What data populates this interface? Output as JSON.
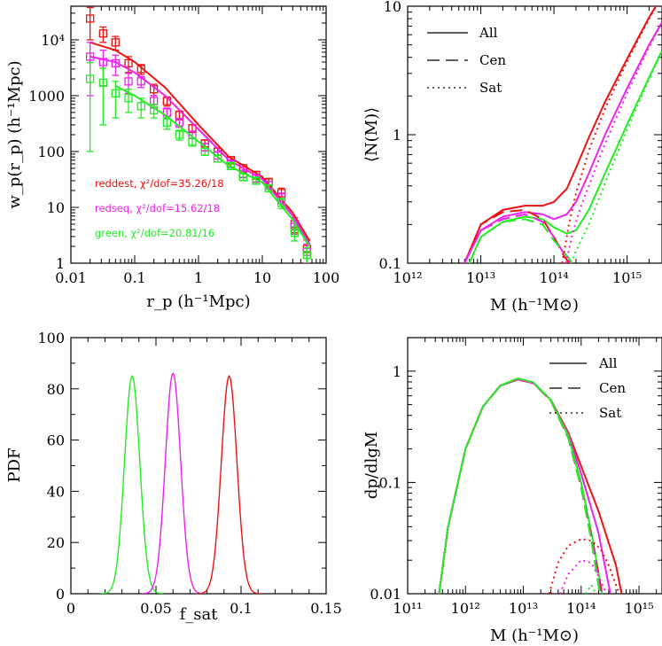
{
  "colors": {
    "reddest": "#ee1111",
    "redseq": "#ee22ee",
    "green": "#22ee22"
  },
  "chart_data": [
    {
      "panel": "top-left",
      "type": "scatter",
      "xlabel": "r_p (h⁻¹Mpc)",
      "ylabel": "w_p(r_p) (h⁻¹Mpc)",
      "xscale": "log",
      "yscale": "log",
      "xlim": [
        0.01,
        100
      ],
      "ylim": [
        1,
        40000
      ],
      "xticklabels": [
        "0.01",
        "0.1",
        "1",
        "10",
        "100"
      ],
      "yticklabels": [
        "1",
        "10",
        "100",
        "1000",
        "10⁴"
      ],
      "annotations": [
        {
          "text": "reddest, χ²/dof=35.26/18",
          "color": "#ee1111"
        },
        {
          "text": "redseq, χ²/dof=15.62/18",
          "color": "#ee22ee"
        },
        {
          "text": "green, χ²/dof=20.81/16",
          "color": "#22ee22"
        }
      ],
      "series": [
        {
          "color": "#ee1111",
          "x": [
            0.02,
            0.032,
            0.05,
            0.08,
            0.126,
            0.2,
            0.32,
            0.5,
            0.8,
            1.26,
            2.0,
            3.2,
            5.0,
            8.0,
            12.6,
            20,
            32,
            50
          ],
          "y": [
            24000,
            13000,
            9000,
            3800,
            3000,
            1300,
            800,
            450,
            260,
            140,
            100,
            70,
            50,
            38,
            28,
            18,
            5,
            1.8
          ],
          "err": [
            14000,
            4000,
            2500,
            1200,
            600,
            300,
            150,
            80,
            40,
            20,
            15,
            10,
            8,
            6,
            5,
            4,
            1.5,
            0.8
          ],
          "model_x": [
            0.02,
            0.05,
            0.1,
            0.3,
            1,
            3,
            10,
            30,
            55
          ],
          "model_y": [
            9000,
            6500,
            4000,
            1400,
            300,
            80,
            35,
            8,
            2.5
          ]
        },
        {
          "color": "#ee22ee",
          "x": [
            0.02,
            0.032,
            0.05,
            0.08,
            0.126,
            0.2,
            0.32,
            0.5,
            0.8,
            1.26,
            2.0,
            3.2,
            5.0,
            8.0,
            12.6,
            20,
            32,
            50
          ],
          "y": [
            5000,
            4000,
            3800,
            1800,
            1800,
            800,
            500,
            330,
            200,
            120,
            85,
            60,
            40,
            33,
            25,
            15,
            4.5,
            1.6
          ],
          "err": [
            4000,
            2500,
            1500,
            700,
            400,
            200,
            100,
            60,
            30,
            18,
            12,
            8,
            6,
            5,
            4,
            3,
            1.2,
            0.6
          ],
          "model_x": [
            0.02,
            0.05,
            0.1,
            0.3,
            1,
            3,
            10,
            30,
            55
          ],
          "model_y": [
            5000,
            4000,
            2600,
            1000,
            250,
            70,
            32,
            7,
            2.2
          ]
        },
        {
          "color": "#22ee22",
          "x": [
            0.02,
            0.032,
            0.05,
            0.08,
            0.126,
            0.2,
            0.32,
            0.5,
            0.8,
            1.26,
            2.0,
            3.2,
            5.0,
            8.0,
            12.6,
            20,
            32,
            50
          ],
          "y": [
            2000,
            1700,
            1100,
            900,
            650,
            550,
            330,
            200,
            150,
            100,
            75,
            55,
            35,
            30,
            22,
            12,
            3.5,
            1.4
          ],
          "err": [
            1900,
            1400,
            700,
            400,
            250,
            150,
            80,
            40,
            25,
            15,
            10,
            7,
            5,
            4,
            3,
            2.5,
            1.0,
            0.5
          ],
          "model_x": [
            0.05,
            0.1,
            0.3,
            1,
            3,
            10,
            30,
            55
          ],
          "model_y": [
            1500,
            1000,
            450,
            150,
            55,
            28,
            6,
            2.0
          ]
        }
      ]
    },
    {
      "panel": "top-right",
      "type": "line",
      "xlabel": "M (h⁻¹M⊙)",
      "ylabel": "⟨N(M)⟩",
      "xscale": "log",
      "yscale": "log",
      "xlim": [
        1000000000000.0,
        3000000000000000.0
      ],
      "ylim": [
        0.1,
        10
      ],
      "xticklabels": [
        "10¹²",
        "10¹³",
        "10¹⁴",
        "10¹⁵"
      ],
      "yticklabels": [
        "0.1",
        "1",
        "10"
      ],
      "legend": {
        "placement": "top-left",
        "entries": [
          "All",
          "Cen",
          "Sat"
        ]
      },
      "series": [
        {
          "name": "All",
          "color": "#ee1111",
          "style": "solid",
          "x": [
            6000000000000.0,
            10000000000000.0,
            20000000000000.0,
            40000000000000.0,
            70000000000000.0,
            100000000000000.0,
            150000000000000.0,
            200000000000000.0,
            300000000000000.0,
            500000000000000.0,
            1000000000000000.0,
            2000000000000000.0,
            3000000000000000.0
          ],
          "y": [
            0.1,
            0.2,
            0.26,
            0.28,
            0.28,
            0.3,
            0.38,
            0.55,
            0.95,
            1.8,
            3.9,
            8.2,
            12
          ]
        },
        {
          "name": "All",
          "color": "#ee22ee",
          "style": "solid",
          "x": [
            6000000000000.0,
            10000000000000.0,
            20000000000000.0,
            40000000000000.0,
            70000000000000.0,
            100000000000000.0,
            150000000000000.0,
            200000000000000.0,
            300000000000000.0,
            500000000000000.0,
            1000000000000000.0,
            2000000000000000.0,
            3000000000000000.0
          ],
          "y": [
            0.1,
            0.18,
            0.23,
            0.25,
            0.24,
            0.22,
            0.24,
            0.3,
            0.5,
            1.0,
            2.3,
            5.0,
            7.5
          ]
        },
        {
          "name": "All",
          "color": "#22ee22",
          "style": "solid",
          "x": [
            7000000000000.0,
            10000000000000.0,
            20000000000000.0,
            40000000000000.0,
            70000000000000.0,
            100000000000000.0,
            150000000000000.0,
            200000000000000.0,
            300000000000000.0,
            500000000000000.0,
            1000000000000000.0,
            2000000000000000.0,
            3000000000000000.0
          ],
          "y": [
            0.1,
            0.16,
            0.21,
            0.23,
            0.22,
            0.19,
            0.17,
            0.18,
            0.26,
            0.5,
            1.2,
            2.8,
            4.5
          ]
        },
        {
          "name": "Cen",
          "color": "#ee1111",
          "style": "dashed",
          "x": [
            6000000000000.0,
            10000000000000.0,
            20000000000000.0,
            40000000000000.0,
            70000000000000.0,
            100000000000000.0,
            130000000000000.0,
            160000000000000.0
          ],
          "y": [
            0.1,
            0.2,
            0.25,
            0.26,
            0.22,
            0.16,
            0.12,
            0.1
          ]
        },
        {
          "name": "Cen",
          "color": "#ee22ee",
          "style": "dashed",
          "x": [
            6000000000000.0,
            10000000000000.0,
            20000000000000.0,
            40000000000000.0,
            70000000000000.0,
            100000000000000.0,
            135000000000000.0,
            170000000000000.0
          ],
          "y": [
            0.1,
            0.18,
            0.22,
            0.24,
            0.21,
            0.16,
            0.12,
            0.1
          ]
        },
        {
          "name": "Cen",
          "color": "#22ee22",
          "style": "dashed",
          "x": [
            7000000000000.0,
            10000000000000.0,
            20000000000000.0,
            40000000000000.0,
            70000000000000.0,
            100000000000000.0,
            140000000000000.0,
            180000000000000.0
          ],
          "y": [
            0.1,
            0.16,
            0.21,
            0.22,
            0.2,
            0.15,
            0.12,
            0.1
          ]
        },
        {
          "name": "Sat",
          "color": "#ee1111",
          "style": "dotted",
          "x": [
            130000000000000.0,
            160000000000000.0,
            200000000000000.0,
            300000000000000.0,
            500000000000000.0,
            1000000000000000.0,
            2000000000000000.0,
            3000000000000000.0
          ],
          "y": [
            0.1,
            0.2,
            0.35,
            0.75,
            1.6,
            3.7,
            8.0,
            12
          ]
        },
        {
          "name": "Sat",
          "color": "#ee22ee",
          "style": "dotted",
          "x": [
            145000000000000.0,
            180000000000000.0,
            230000000000000.0,
            300000000000000.0,
            500000000000000.0,
            1000000000000000.0,
            2000000000000000.0,
            3000000000000000.0
          ],
          "y": [
            0.1,
            0.17,
            0.27,
            0.4,
            0.85,
            2.1,
            4.8,
            7.5
          ]
        },
        {
          "name": "Sat",
          "color": "#22ee22",
          "style": "dotted",
          "x": [
            170000000000000.0,
            220000000000000.0,
            300000000000000.0,
            500000000000000.0,
            1000000000000000.0,
            2000000000000000.0,
            3000000000000000.0
          ],
          "y": [
            0.1,
            0.14,
            0.2,
            0.42,
            1.1,
            2.7,
            4.5
          ]
        }
      ]
    },
    {
      "panel": "bottom-left",
      "type": "line",
      "xlabel": "f_sat",
      "ylabel": "PDF",
      "xlim": [
        0,
        0.15
      ],
      "ylim": [
        0,
        100
      ],
      "xticklabels": [
        "0",
        "0.05",
        "0.1",
        "0.15"
      ],
      "yticklabels": [
        "0",
        "20",
        "40",
        "60",
        "80",
        "100"
      ],
      "series": [
        {
          "color": "#22ee22",
          "peak": 0.036,
          "sigma": 0.0045,
          "height": 85
        },
        {
          "color": "#ee22ee",
          "peak": 0.06,
          "sigma": 0.0045,
          "height": 86
        },
        {
          "color": "#ee1111",
          "peak": 0.093,
          "sigma": 0.0046,
          "height": 85
        }
      ]
    },
    {
      "panel": "bottom-right",
      "type": "line",
      "xlabel": "M (h⁻¹M⊙)",
      "ylabel": "dp/dlgM",
      "xscale": "log",
      "yscale": "log",
      "xlim": [
        100000000000.0,
        2500000000000000.0
      ],
      "ylim": [
        0.01,
        2
      ],
      "xticklabels": [
        "10¹¹",
        "10¹²",
        "10¹³",
        "10¹⁴",
        "10¹⁵"
      ],
      "yticklabels": [
        "0.01",
        "0.1",
        "1"
      ],
      "legend": {
        "placement": "top-right",
        "entries": [
          "All",
          "Cen",
          "Sat"
        ]
      },
      "series": [
        {
          "name": "All",
          "color": "#ee1111",
          "style": "solid",
          "x": [
            350000000000.0,
            500000000000.0,
            1000000000000.0,
            2000000000000.0,
            4000000000000.0,
            8000000000000.0,
            15000000000000.0,
            30000000000000.0,
            60000000000000.0,
            100000000000000.0,
            200000000000000.0,
            400000000000000.0,
            500000000000000.0
          ],
          "y": [
            0.01,
            0.04,
            0.2,
            0.48,
            0.74,
            0.84,
            0.78,
            0.55,
            0.28,
            0.14,
            0.055,
            0.018,
            0.01
          ]
        },
        {
          "name": "All",
          "color": "#ee22ee",
          "style": "solid",
          "x": [
            350000000000.0,
            500000000000.0,
            1000000000000.0,
            2000000000000.0,
            4000000000000.0,
            8000000000000.0,
            15000000000000.0,
            30000000000000.0,
            60000000000000.0,
            100000000000000.0,
            200000000000000.0,
            320000000000000.0
          ],
          "y": [
            0.01,
            0.04,
            0.2,
            0.48,
            0.74,
            0.85,
            0.78,
            0.55,
            0.27,
            0.12,
            0.035,
            0.01
          ]
        },
        {
          "name": "All",
          "color": "#22ee22",
          "style": "solid",
          "x": [
            350000000000.0,
            500000000000.0,
            1000000000000.0,
            2000000000000.0,
            4000000000000.0,
            8000000000000.0,
            15000000000000.0,
            30000000000000.0,
            60000000000000.0,
            100000000000000.0,
            160000000000000.0,
            230000000000000.0
          ],
          "y": [
            0.01,
            0.04,
            0.2,
            0.48,
            0.74,
            0.86,
            0.79,
            0.55,
            0.26,
            0.1,
            0.03,
            0.01
          ]
        },
        {
          "name": "Cen",
          "color": "#ee1111",
          "style": "dashed",
          "x": [
            350000000000.0,
            500000000000.0,
            1000000000000.0,
            2000000000000.0,
            4000000000000.0,
            8000000000000.0,
            15000000000000.0,
            30000000000000.0,
            60000000000000.0,
            100000000000000.0,
            160000000000000.0,
            230000000000000.0
          ],
          "y": [
            0.01,
            0.04,
            0.2,
            0.48,
            0.74,
            0.84,
            0.78,
            0.54,
            0.25,
            0.09,
            0.028,
            0.01
          ]
        },
        {
          "name": "Cen",
          "color": "#ee22ee",
          "style": "dashed",
          "x": [
            350000000000.0,
            500000000000.0,
            1000000000000.0,
            2000000000000.0,
            4000000000000.0,
            8000000000000.0,
            15000000000000.0,
            30000000000000.0,
            60000000000000.0,
            100000000000000.0,
            160000000000000.0,
            220000000000000.0
          ],
          "y": [
            0.01,
            0.04,
            0.2,
            0.48,
            0.74,
            0.85,
            0.78,
            0.54,
            0.25,
            0.09,
            0.027,
            0.01
          ]
        },
        {
          "name": "Cen",
          "color": "#22ee22",
          "style": "dashed",
          "x": [
            350000000000.0,
            500000000000.0,
            1000000000000.0,
            2000000000000.0,
            4000000000000.0,
            8000000000000.0,
            15000000000000.0,
            30000000000000.0,
            60000000000000.0,
            100000000000000.0,
            150000000000000.0,
            210000000000000.0
          ],
          "y": [
            0.01,
            0.04,
            0.2,
            0.48,
            0.74,
            0.86,
            0.79,
            0.54,
            0.25,
            0.09,
            0.03,
            0.01
          ]
        },
        {
          "name": "Sat",
          "color": "#ee1111",
          "style": "dotted",
          "x": [
            28000000000000.0,
            40000000000000.0,
            60000000000000.0,
            100000000000000.0,
            150000000000000.0,
            220000000000000.0,
            300000000000000.0,
            400000000000000.0,
            460000000000000.0
          ],
          "y": [
            0.01,
            0.019,
            0.027,
            0.031,
            0.03,
            0.025,
            0.018,
            0.012,
            0.01
          ]
        },
        {
          "name": "Sat",
          "color": "#ee22ee",
          "style": "dotted",
          "x": [
            43000000000000.0,
            60000000000000.0,
            100000000000000.0,
            150000000000000.0,
            220000000000000.0,
            270000000000000.0
          ],
          "y": [
            0.01,
            0.015,
            0.02,
            0.019,
            0.013,
            0.01
          ]
        },
        {
          "name": "Sat",
          "color": "#22ee22",
          "style": "dotted",
          "x": [
            120000000000000.0,
            150000000000000.0,
            180000000000000.0
          ],
          "y": [
            0.01,
            0.012,
            0.01
          ]
        }
      ]
    }
  ]
}
